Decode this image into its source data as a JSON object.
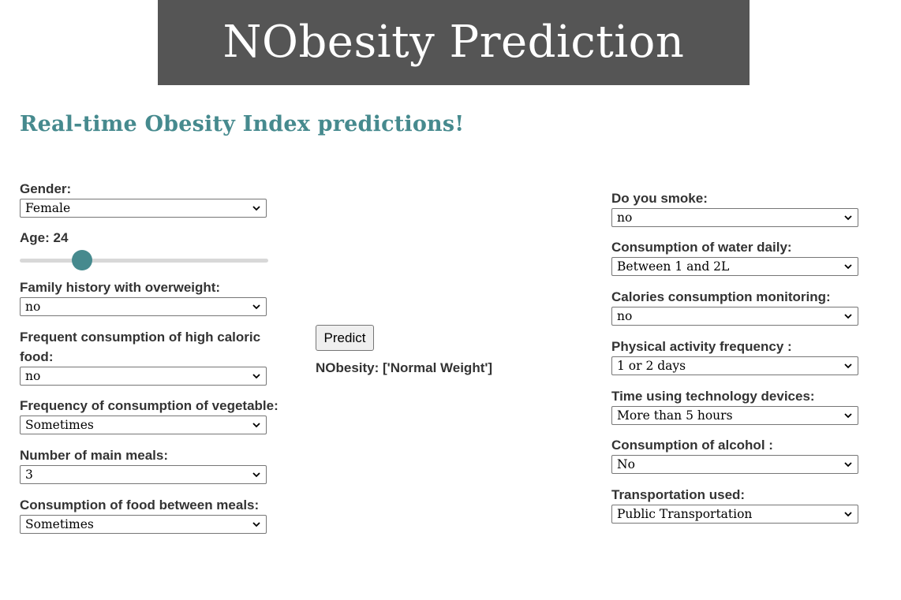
{
  "header": {
    "title": "NObesity Prediction"
  },
  "subtitle": "Real-time Obesity Index predictions!",
  "left_form": {
    "gender": {
      "label": "Gender:",
      "value": "Female"
    },
    "age": {
      "label": "Age: 24",
      "value": 24,
      "min": 14,
      "max": 61
    },
    "family_history": {
      "label": "Family history with overweight:",
      "value": "no"
    },
    "high_caloric": {
      "label": "Frequent consumption of high caloric food:",
      "value": "no"
    },
    "vegetables": {
      "label": "Frequency of consumption of vegetable:",
      "value": "Sometimes"
    },
    "main_meals": {
      "label": "Number of main meals:",
      "value": "3"
    },
    "between_meals": {
      "label": "Consumption of food between meals:",
      "value": "Sometimes"
    }
  },
  "center": {
    "predict_label": "Predict",
    "result_text": "NObesity: ['Normal Weight']"
  },
  "right_form": {
    "smoke": {
      "label": "Do you smoke:",
      "value": "no"
    },
    "water": {
      "label": "Consumption of water daily:",
      "value": "Between 1 and 2L"
    },
    "calories_monitoring": {
      "label": "Calories consumption monitoring:",
      "value": "no"
    },
    "physical_activity": {
      "label": "Physical activity frequency :",
      "value": "1 or 2 days"
    },
    "technology": {
      "label": "Time using technology devices:",
      "value": "More than 5 hours"
    },
    "alcohol": {
      "label": "Consumption of alcohol :",
      "value": "No"
    },
    "transportation": {
      "label": "Transportation used:",
      "value": "Public Transportation"
    }
  },
  "colors": {
    "banner_bg": "#555555",
    "accent": "#468a8e",
    "slider_track": "#d8d8d8"
  },
  "icons": {
    "select_chevron": "chevron-down-icon"
  }
}
